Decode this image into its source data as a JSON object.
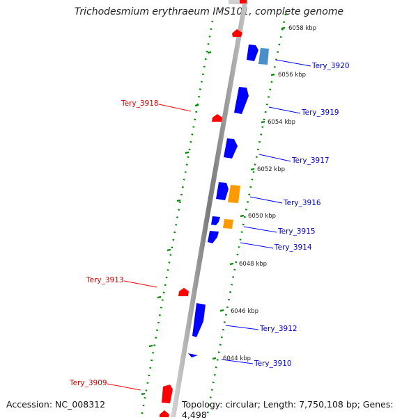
{
  "title_prefix": "Trichodesmium erythraeum IMS101",
  "title_suffix": ", complete genome",
  "footer": {
    "accession": "Accession: NC_008312",
    "summary": "Topology: circular; Length: 7,750,108 bp; Genes: 4,498"
  },
  "tick_labels": [
    "6058 kbp",
    "6056 kbp",
    "6054 kbp",
    "6052 kbp",
    "6050 kbp",
    "6048 kbp",
    "6046 kbp",
    "6044 kbp"
  ],
  "gene_labels": {
    "fwd": [
      "Tery_3920",
      "Tery_3919",
      "Tery_3917",
      "Tery_3916",
      "Tery_3915",
      "Tery_3914",
      "Tery_3912",
      "Tery_3910"
    ],
    "rev": [
      "Tery_3918",
      "Tery_3913",
      "Tery_3909"
    ]
  },
  "colors": {
    "forward_gene": "#0000ff",
    "forward_gene_alt": "#4a90c8",
    "reverse_gene": "#ff0000",
    "orange_feature": "#ff9900",
    "tick": "#008800",
    "backbone": "#808080",
    "fwd_label": "#0000cc",
    "rev_label": "#cc0000"
  }
}
